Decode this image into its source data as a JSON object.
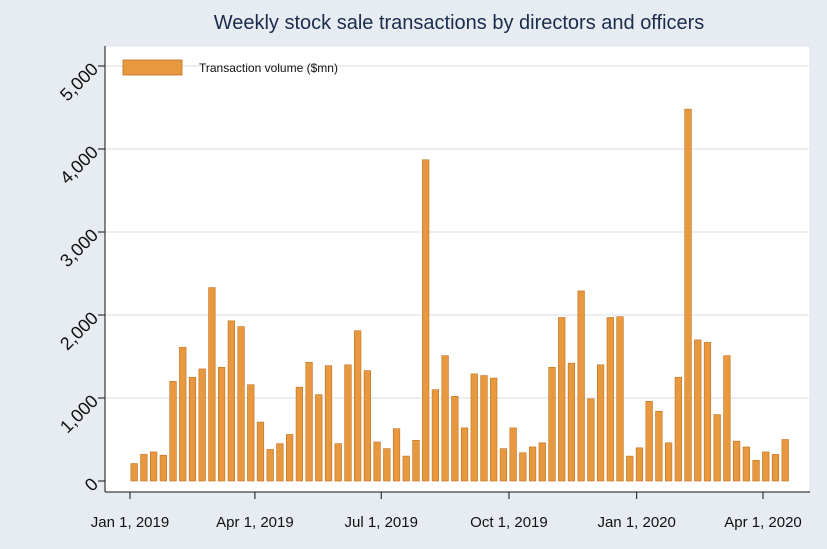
{
  "chart_data": {
    "type": "bar",
    "title": "Weekly stock sale transactions by directors and officers",
    "xlabel": "",
    "ylabel": "",
    "legend": {
      "label": "Transaction volume ($mn)",
      "position": "top-left"
    },
    "colors": {
      "bar": "#e8993f",
      "bar_stroke": "#c06e1c",
      "background": "#e6ecf1",
      "plot_bg": "#ffffff",
      "grid": "#e3eaf0"
    },
    "grid": true,
    "ylim": [
      0,
      5000
    ],
    "yticks": [
      0,
      1000,
      2000,
      3000,
      4000,
      5000
    ],
    "ytick_labels": [
      "0",
      "1,000",
      "2,000",
      "3,000",
      "4,000",
      "5,000"
    ],
    "xlim": [
      "2018-12-26",
      "2020-04-29"
    ],
    "xticks": [
      "2019-01-01",
      "2019-04-01",
      "2019-07-01",
      "2019-10-01",
      "2020-01-01",
      "2020-04-01"
    ],
    "xtick_labels": [
      "Jan 1, 2019",
      "Apr 1, 2019",
      "Jul 1, 2019",
      "Oct 1, 2019",
      "Jan 1, 2020",
      "Apr 1, 2020"
    ],
    "series": [
      {
        "name": "Transaction volume ($mn)",
        "x": [
          "2019-01-04",
          "2019-01-11",
          "2019-01-18",
          "2019-01-25",
          "2019-02-01",
          "2019-02-08",
          "2019-02-15",
          "2019-02-22",
          "2019-03-01",
          "2019-03-08",
          "2019-03-15",
          "2019-03-22",
          "2019-03-29",
          "2019-04-05",
          "2019-04-12",
          "2019-04-19",
          "2019-04-26",
          "2019-05-03",
          "2019-05-10",
          "2019-05-17",
          "2019-05-24",
          "2019-05-31",
          "2019-06-07",
          "2019-06-14",
          "2019-06-21",
          "2019-06-28",
          "2019-07-05",
          "2019-07-12",
          "2019-07-19",
          "2019-07-26",
          "2019-08-02",
          "2019-08-09",
          "2019-08-16",
          "2019-08-23",
          "2019-08-30",
          "2019-09-06",
          "2019-09-13",
          "2019-09-20",
          "2019-09-27",
          "2019-10-04",
          "2019-10-11",
          "2019-10-18",
          "2019-10-25",
          "2019-11-01",
          "2019-11-08",
          "2019-11-15",
          "2019-11-22",
          "2019-11-29",
          "2019-12-06",
          "2019-12-13",
          "2019-12-20",
          "2019-12-27",
          "2020-01-03",
          "2020-01-10",
          "2020-01-17",
          "2020-01-24",
          "2020-01-31",
          "2020-02-07",
          "2020-02-14",
          "2020-02-21",
          "2020-02-28",
          "2020-03-06",
          "2020-03-13",
          "2020-03-20",
          "2020-03-27",
          "2020-04-03",
          "2020-04-10",
          "2020-04-17"
        ],
        "values": [
          210,
          320,
          350,
          310,
          1200,
          1610,
          1250,
          1350,
          2330,
          1370,
          1930,
          1860,
          1160,
          710,
          380,
          450,
          560,
          1130,
          1430,
          1040,
          1390,
          450,
          1400,
          1810,
          1330,
          470,
          390,
          630,
          300,
          490,
          3870,
          1100,
          1510,
          1020,
          640,
          1290,
          1270,
          1240,
          390,
          640,
          340,
          410,
          460,
          1370,
          1970,
          1420,
          2290,
          990,
          1400,
          1970,
          1980,
          300,
          400,
          960,
          840,
          460,
          1250,
          4480,
          1700,
          1670,
          800,
          1510,
          480,
          410,
          250,
          350,
          320,
          500
        ]
      }
    ]
  }
}
